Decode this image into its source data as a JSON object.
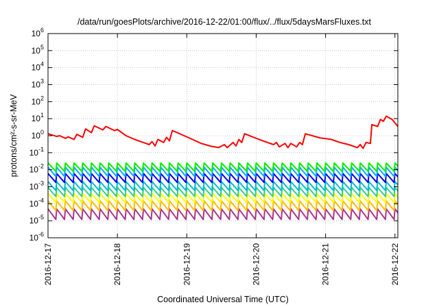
{
  "chart_data": {
    "type": "line",
    "title": "/data/run/goesPlots/archive/2016-12-22/01:00/flux/../flux/5daysMarsFluxes.txt",
    "xlabel": "Coordinated Universal Time (UTC)",
    "ylabel": "protons/cm²-s-sr-MeV",
    "y_scale": "log",
    "ylim": [
      1e-06,
      1000000.0
    ],
    "y_ticks": [
      {
        "value": 1e-06,
        "base": "10",
        "exp": "-6"
      },
      {
        "value": 1e-05,
        "base": "10",
        "exp": "-5"
      },
      {
        "value": 0.0001,
        "base": "10",
        "exp": "-4"
      },
      {
        "value": 0.001,
        "base": "10",
        "exp": "-3"
      },
      {
        "value": 0.01,
        "base": "10",
        "exp": "-2"
      },
      {
        "value": 0.1,
        "base": "10",
        "exp": "-1"
      },
      {
        "value": 1,
        "base": "10",
        "exp": "0"
      },
      {
        "value": 10,
        "base": "10",
        "exp": "1"
      },
      {
        "value": 100,
        "base": "10",
        "exp": "2"
      },
      {
        "value": 1000,
        "base": "10",
        "exp": "3"
      },
      {
        "value": 10000,
        "base": "10",
        "exp": "4"
      },
      {
        "value": 100000,
        "base": "10",
        "exp": "5"
      },
      {
        "value": 1000000,
        "base": "10",
        "exp": "6"
      }
    ],
    "xlim": [
      "2016-12-17T00:00",
      "2016-12-22T01:00"
    ],
    "x_ticks": [
      "2016-12-17",
      "2016-12-18",
      "2016-12-19",
      "2016-12-20",
      "2016-12-21",
      "2016-12-22"
    ],
    "grid": true,
    "series": [
      {
        "color": "#ff0000",
        "points": [
          [
            "2016-12-17T00:00",
            1.3
          ],
          [
            "2016-12-17T03:00",
            0.9
          ],
          [
            "2016-12-17T04:00",
            1.0
          ],
          [
            "2016-12-17T06:00",
            0.7
          ],
          [
            "2016-12-17T07:00",
            0.85
          ],
          [
            "2016-12-17T09:00",
            0.6
          ],
          [
            "2016-12-17T10:00",
            1.2
          ],
          [
            "2016-12-17T12:00",
            0.8
          ],
          [
            "2016-12-17T13:00",
            2.5
          ],
          [
            "2016-12-17T15:00",
            1.5
          ],
          [
            "2016-12-17T16:00",
            3.8
          ],
          [
            "2016-12-17T19:00",
            2.2
          ],
          [
            "2016-12-17T20:00",
            3.5
          ],
          [
            "2016-12-17T23:00",
            2.0
          ],
          [
            "2016-12-18T00:00",
            2.3
          ],
          [
            "2016-12-18T03:00",
            1.0
          ],
          [
            "2016-12-18T06:00",
            0.6
          ],
          [
            "2016-12-18T09:00",
            0.4
          ],
          [
            "2016-12-18T11:00",
            0.3
          ],
          [
            "2016-12-18T12:00",
            0.45
          ],
          [
            "2016-12-18T13:00",
            0.25
          ],
          [
            "2016-12-18T14:00",
            0.6
          ],
          [
            "2016-12-18T16:00",
            0.4
          ],
          [
            "2016-12-18T17:00",
            0.8
          ],
          [
            "2016-12-18T18:00",
            0.5
          ],
          [
            "2016-12-18T19:00",
            2.0
          ],
          [
            "2016-12-18T22:00",
            1.2
          ],
          [
            "2016-12-19T02:00",
            0.6
          ],
          [
            "2016-12-19T05:00",
            0.35
          ],
          [
            "2016-12-19T08:00",
            0.25
          ],
          [
            "2016-12-19T11:00",
            0.2
          ],
          [
            "2016-12-19T13:00",
            0.3
          ],
          [
            "2016-12-19T14:00",
            0.2
          ],
          [
            "2016-12-19T16:00",
            0.4
          ],
          [
            "2016-12-19T17:00",
            0.25
          ],
          [
            "2016-12-19T18:00",
            0.6
          ],
          [
            "2016-12-19T19:00",
            0.4
          ],
          [
            "2016-12-19T20:00",
            1.3
          ],
          [
            "2016-12-20T00:00",
            0.7
          ],
          [
            "2016-12-20T03:00",
            0.45
          ],
          [
            "2016-12-20T06:00",
            0.3
          ],
          [
            "2016-12-20T07:00",
            0.4
          ],
          [
            "2016-12-20T08:00",
            0.22
          ],
          [
            "2016-12-20T10:00",
            0.35
          ],
          [
            "2016-12-20T11:00",
            0.2
          ],
          [
            "2016-12-20T12:00",
            0.35
          ],
          [
            "2016-12-20T14:00",
            0.22
          ],
          [
            "2016-12-20T15:00",
            0.4
          ],
          [
            "2016-12-20T16:00",
            0.3
          ],
          [
            "2016-12-20T17:00",
            1.3
          ],
          [
            "2016-12-20T22:00",
            0.75
          ],
          [
            "2016-12-21T02:00",
            0.6
          ],
          [
            "2016-12-21T05:00",
            0.4
          ],
          [
            "2016-12-21T08:00",
            0.3
          ],
          [
            "2016-12-21T11:00",
            0.2
          ],
          [
            "2016-12-21T12:00",
            0.3
          ],
          [
            "2016-12-21T13:00",
            0.18
          ],
          [
            "2016-12-21T14:00",
            0.4
          ],
          [
            "2016-12-21T15:30",
            0.35
          ],
          [
            "2016-12-21T16:00",
            4.5
          ],
          [
            "2016-12-21T18:00",
            3.5
          ],
          [
            "2016-12-21T19:00",
            9.0
          ],
          [
            "2016-12-21T20:00",
            7.0
          ],
          [
            "2016-12-21T21:00",
            14.0
          ],
          [
            "2016-12-21T23:00",
            9.0
          ],
          [
            "2016-12-22T01:00",
            3.5
          ]
        ]
      },
      {
        "color": "#00ee00",
        "cycle_hours": 3,
        "high": 0.025,
        "low": 0.008
      },
      {
        "color": "#00aaff",
        "cycle_hours": 3,
        "high": 0.014,
        "low": 0.004
      },
      {
        "color": "#0000ee",
        "cycle_hours": 3,
        "high": 0.006,
        "low": 0.0018
      },
      {
        "color": "#00bbcc",
        "cycle_hours": 3,
        "high": 0.002,
        "low": 0.0006
      },
      {
        "color": "#33cc88",
        "cycle_hours": 3,
        "high": 0.0009,
        "low": 0.00027
      },
      {
        "color": "#ffff00",
        "cycle_hours": 3,
        "high": 0.0004,
        "low": 0.00012
      },
      {
        "color": "#ffbb00",
        "cycle_hours": 3,
        "high": 0.00015,
        "low": 4e-05
      },
      {
        "color": "#aa3388",
        "cycle_hours": 3,
        "high": 5e-05,
        "low": 1.2e-05
      }
    ]
  }
}
